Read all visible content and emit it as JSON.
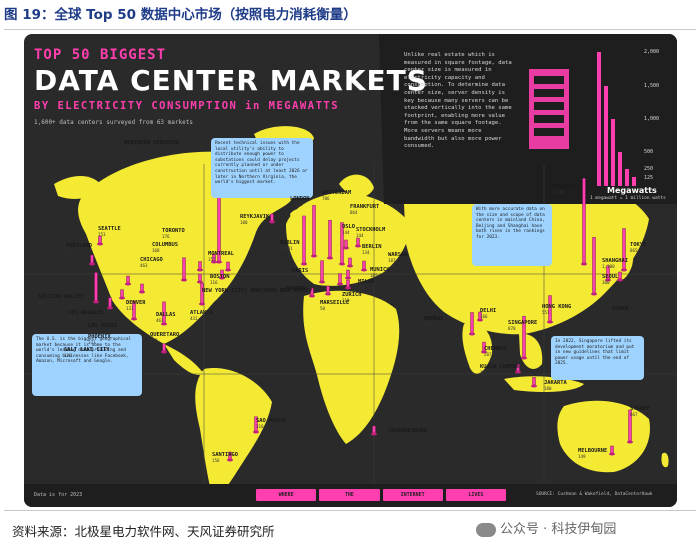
{
  "caption": "图 19：全球 Top 50 数据中心市场（按照电力消耗衡量）",
  "poster": {
    "title_top": "TOP 50 BIGGEST",
    "title_main": "DATA CENTER MARKETS",
    "subtitle": "BY ELECTRICITY CONSUMPTION in MEGAWATTS",
    "survey_note": "1,600+ data centers surveyed from 63 markets",
    "intro_text": "Unlike real estate which is measured in square footage, data center size is measured in electricity capacity and consumption. To determine data center size, server density is key because many servers can be stacked vertically into the same footprint, enabling more value from the same square footage. More servers means more bandwidth but also more power consumed.",
    "legend": {
      "title": "Megawatts",
      "note": "1 megawatt = 1 million watts",
      "ticks": [
        "2,000",
        "1,500",
        "1,000",
        "500",
        "250",
        "125"
      ]
    },
    "callouts": {
      "virginia": "Recent technical issues with the local utility's ability to distribute enough power to substations could delay projects currently planned or under construction until at least 2026 or later in Northern Virginia, the world's biggest market.",
      "us": "The U.S. is the biggest geographical market because it is home to the world's leading data producing and consuming businesses like Facebook, Amazon, Microsoft and Google.",
      "china": "With more accurate data on the size and scope of data centers in mainland China, Beijing and Shanghai have both risen in the rankings for 2023.",
      "singapore": "In 2022, Singapore lifted its development moratorium and put in new guidelines that limit power usage until the end of 2025."
    },
    "cities": [
      {
        "name": "NORTHERN VIRGINIA",
        "value": "2,552"
      },
      {
        "name": "SEATTLE",
        "value": "153"
      },
      {
        "name": "PORTLAND",
        "value": "187"
      },
      {
        "name": "SILICON VALLEY",
        "value": "615"
      },
      {
        "name": "LOS ANGELES",
        "value": "216"
      },
      {
        "name": "LAS VEGAS",
        "value": "173"
      },
      {
        "name": "PHOENIX",
        "value": "373"
      },
      {
        "name": "SALT LAKE CITY",
        "value": "126"
      },
      {
        "name": "DENVER",
        "value": "131"
      },
      {
        "name": "DALLAS",
        "value": "461"
      },
      {
        "name": "CHICAGO",
        "value": "463"
      },
      {
        "name": "COLUMBUS",
        "value": "168"
      },
      {
        "name": "TORONTO",
        "value": "176"
      },
      {
        "name": "MONTREAL",
        "value": "157"
      },
      {
        "name": "BOSTON",
        "value": "116"
      },
      {
        "name": "NEW YORK CITY/ NORTHERN NEW JERSEY",
        "value": ""
      },
      {
        "name": "ATLANTA",
        "value": "431"
      },
      {
        "name": "QUERETARO",
        "value": "173"
      },
      {
        "name": "SAO PAULO",
        "value": "318"
      },
      {
        "name": "SANTIAGO",
        "value": "156"
      },
      {
        "name": "REYKJAVIK",
        "value": "100"
      },
      {
        "name": "LONDON",
        "value": "1,053"
      },
      {
        "name": "DUBLIN",
        "value": "1,001"
      },
      {
        "name": "PARIS",
        "value": "445"
      },
      {
        "name": "MADRID",
        "value": "117"
      },
      {
        "name": "MARSEILLE",
        "value": "50"
      },
      {
        "name": "AMSTERDAM",
        "value": "786"
      },
      {
        "name": "FRANKFURT",
        "value": "864"
      },
      {
        "name": "OSLO",
        "value": "144"
      },
      {
        "name": "STOCKHOLM",
        "value": "144"
      },
      {
        "name": "BERLIN",
        "value": "134"
      },
      {
        "name": "WARSAW",
        "value": "187"
      },
      {
        "name": "MUNICH",
        "value": "105"
      },
      {
        "name": "ZURICH",
        "value": "219"
      },
      {
        "name": "MILAN",
        "value": "148"
      },
      {
        "name": "JOHANNESBURG",
        "value": "167"
      },
      {
        "name": "MUMBAI",
        "value": "448"
      },
      {
        "name": "DELHI",
        "value": "166"
      },
      {
        "name": "CHENNAI",
        "value": "207"
      },
      {
        "name": "SINGAPORE",
        "value": "870"
      },
      {
        "name": "KUALA LUMPUR",
        "value": "137"
      },
      {
        "name": "JAKARTA",
        "value": "180"
      },
      {
        "name": "HONG KONG",
        "value": "551"
      },
      {
        "name": "BEIJING",
        "value": "1,784"
      },
      {
        "name": "SHANGHAI",
        "value": "1,180"
      },
      {
        "name": "SEOUL",
        "value": "300"
      },
      {
        "name": "TOKYO",
        "value": "865"
      },
      {
        "name": "OSAKA",
        "value": "127"
      },
      {
        "name": "SYDNEY",
        "value": "667"
      },
      {
        "name": "MELBOURNE",
        "value": "149"
      }
    ],
    "data_note": "Data is for 2023",
    "brand_tiles": [
      "WHERE",
      "THE",
      "INTERNET",
      "LIVES"
    ],
    "source_note": "SOURCE: Cushman & Wakefield, DataCenterHawk"
  },
  "footer": {
    "source": "资料来源：北极星电力软件网、天风证券研究所",
    "watermark": "公众号 · 科技伊甸园"
  },
  "colors": {
    "background": "#2a2a2a",
    "land": "#f4ea34",
    "bar": "#ff3fb0",
    "callout": "#9fd3ff",
    "caption": "#1f3c88"
  }
}
